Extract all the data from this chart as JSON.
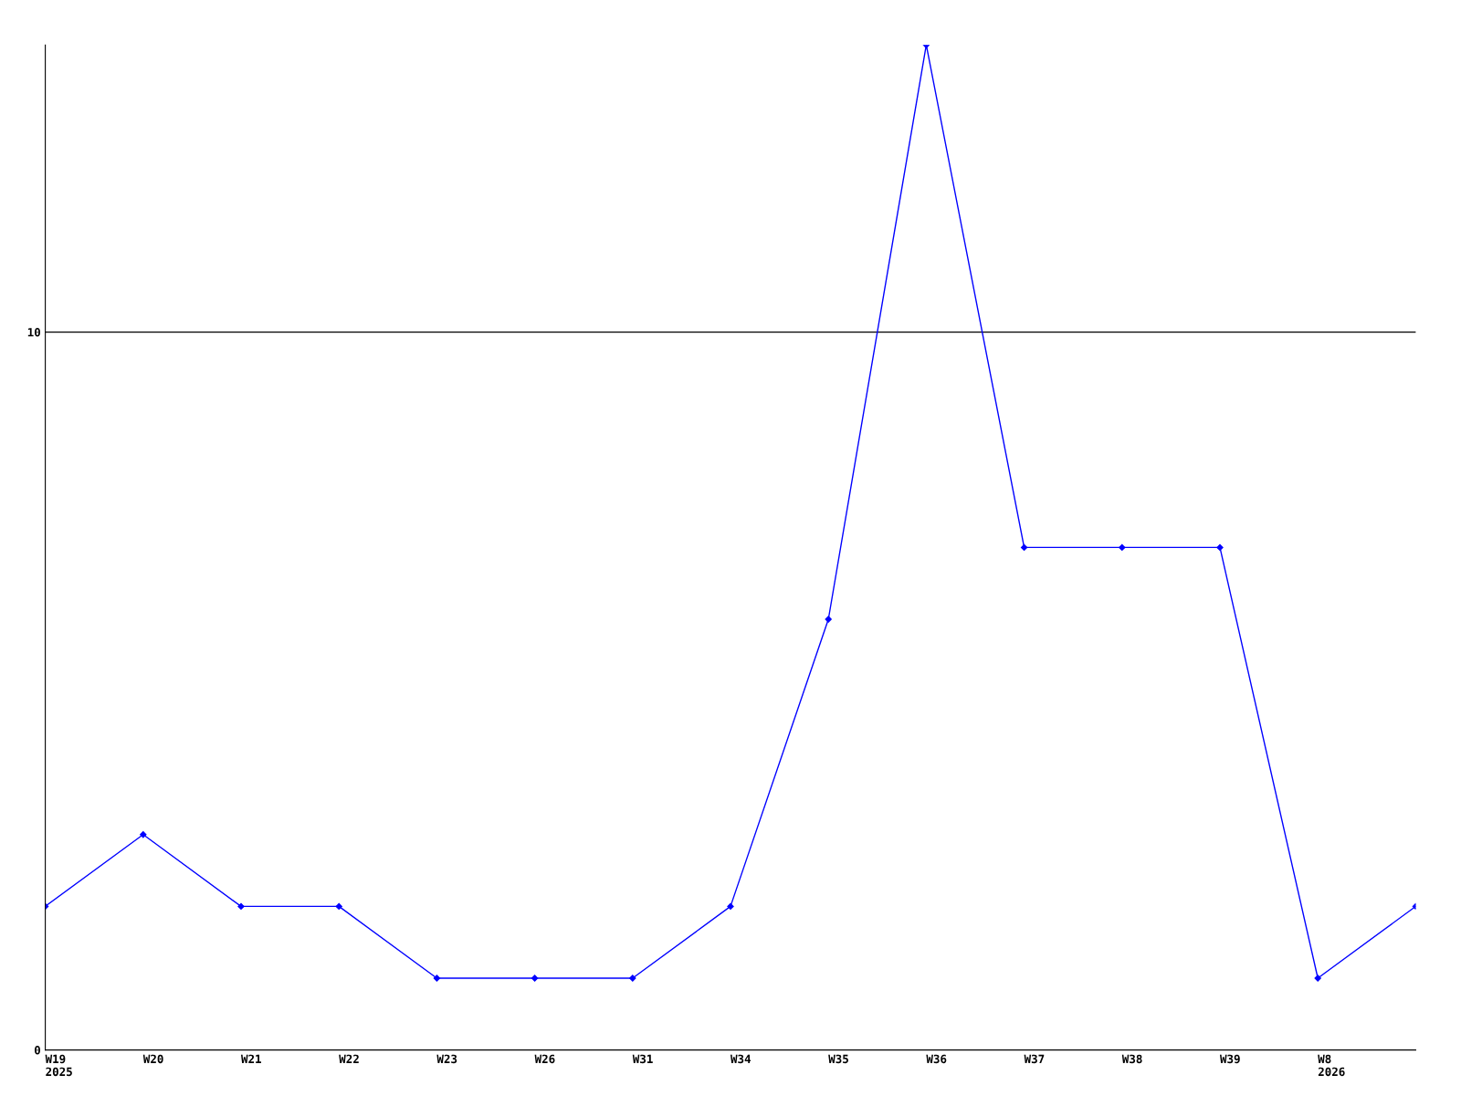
{
  "chart_data": {
    "type": "line",
    "categories": [
      "W19\n2025",
      "W20",
      "W21",
      "W22",
      "W23",
      "W26",
      "W31",
      "W34",
      "W35",
      "W36",
      "W37",
      "W38",
      "W39",
      "W8\n2026",
      null
    ],
    "series": [
      {
        "color": "#0000ff",
        "values": [
          2,
          3,
          2,
          2,
          1,
          1,
          1,
          2,
          6,
          14,
          7,
          7,
          7,
          1,
          2
        ]
      }
    ],
    "ylim": [
      0,
      14
    ],
    "yticks": [
      0,
      10
    ],
    "grid": "y",
    "marker": "diamond",
    "line_style": "solid"
  }
}
